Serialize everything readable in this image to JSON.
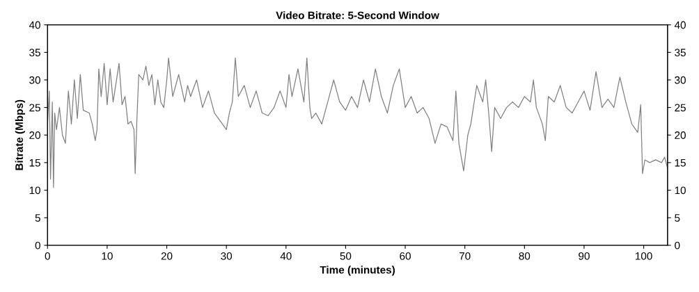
{
  "chart_data": {
    "type": "line",
    "title": "Video Bitrate: 5-Second Window",
    "xlabel": "Time (minutes)",
    "ylabel": "Bitrate (Mbps)",
    "xlim": [
      0,
      104
    ],
    "xticks": [
      0,
      10,
      20,
      30,
      40,
      50,
      60,
      70,
      80,
      90,
      100
    ],
    "ylim": [
      0,
      40
    ],
    "yticks": [
      0,
      5,
      10,
      15,
      20,
      25,
      30,
      35,
      40
    ],
    "y2lim": [
      0,
      40
    ],
    "y2ticks": [
      0,
      5,
      10,
      15,
      20,
      25,
      30,
      35,
      40
    ],
    "grid": false,
    "marker": "none",
    "line_style": "solid",
    "series": [
      {
        "color": "#808080",
        "x": [
          0,
          0.3,
          0.5,
          0.8,
          1.0,
          1.2,
          1.5,
          2,
          2.5,
          3,
          3.5,
          4,
          4.5,
          5,
          5.5,
          6,
          7,
          7.5,
          8,
          8.3,
          8.6,
          9,
          9.5,
          10,
          10.5,
          11,
          12,
          12.5,
          13,
          13.5,
          14,
          14.5,
          14.7,
          15,
          15.3,
          16,
          16.5,
          17,
          17.5,
          18,
          18.5,
          19,
          19.5,
          20,
          20.3,
          21,
          22,
          23,
          23.5,
          24,
          25,
          26,
          27,
          28,
          29,
          30,
          30.5,
          31,
          31.5,
          32,
          33,
          34,
          35,
          36,
          37,
          38,
          39,
          40,
          40.5,
          41,
          42,
          43,
          43.5,
          44,
          44.3,
          45,
          46,
          47,
          48,
          49,
          50,
          51,
          52,
          53,
          54,
          55,
          56,
          57,
          58,
          59,
          60,
          61,
          62,
          63,
          64,
          65,
          66,
          67,
          68,
          68.5,
          69,
          69.8,
          70.5,
          71,
          72,
          73,
          73.5,
          74,
          74.5,
          75,
          76,
          77,
          78,
          79,
          80,
          81,
          81.5,
          82,
          83,
          83.5,
          84,
          85,
          86,
          87,
          88,
          89,
          90,
          91,
          92,
          93,
          94,
          95,
          96,
          97,
          98,
          99,
          99.5,
          99.8,
          100.2,
          101,
          102,
          103,
          103.5,
          104
        ],
        "values": [
          22,
          28,
          12,
          26,
          10.5,
          24,
          21,
          25,
          20,
          18.5,
          28,
          22,
          30,
          23,
          31,
          24.5,
          24,
          22,
          19,
          21,
          32,
          27,
          33,
          25.5,
          32,
          26,
          33,
          25.5,
          27,
          22,
          22.5,
          21,
          13,
          23,
          31,
          30,
          32.5,
          29,
          31,
          25.5,
          30,
          26,
          25,
          30,
          34,
          27,
          31,
          26,
          29,
          27,
          30,
          25,
          28,
          24,
          22.5,
          21,
          24,
          26,
          34,
          27,
          29,
          25,
          28,
          24,
          23.5,
          25,
          28,
          25,
          31,
          27,
          32,
          26,
          34,
          25,
          23,
          24,
          22,
          26,
          30,
          26,
          24.5,
          27,
          25,
          30,
          26,
          32,
          27,
          24,
          29,
          32,
          25,
          27,
          24,
          25,
          23,
          18.5,
          22,
          21.5,
          19,
          28,
          18.5,
          13.5,
          20,
          22,
          29,
          26,
          30,
          24,
          17,
          25,
          23,
          25,
          26,
          25,
          27,
          26,
          30,
          25,
          22,
          19,
          27,
          26,
          29,
          25,
          24,
          26,
          28,
          24.5,
          31.5,
          25,
          26.5,
          25,
          30.5,
          26,
          22,
          20.5,
          25.5,
          13,
          15.5,
          15,
          15.5,
          15,
          16,
          14
        ]
      }
    ]
  }
}
